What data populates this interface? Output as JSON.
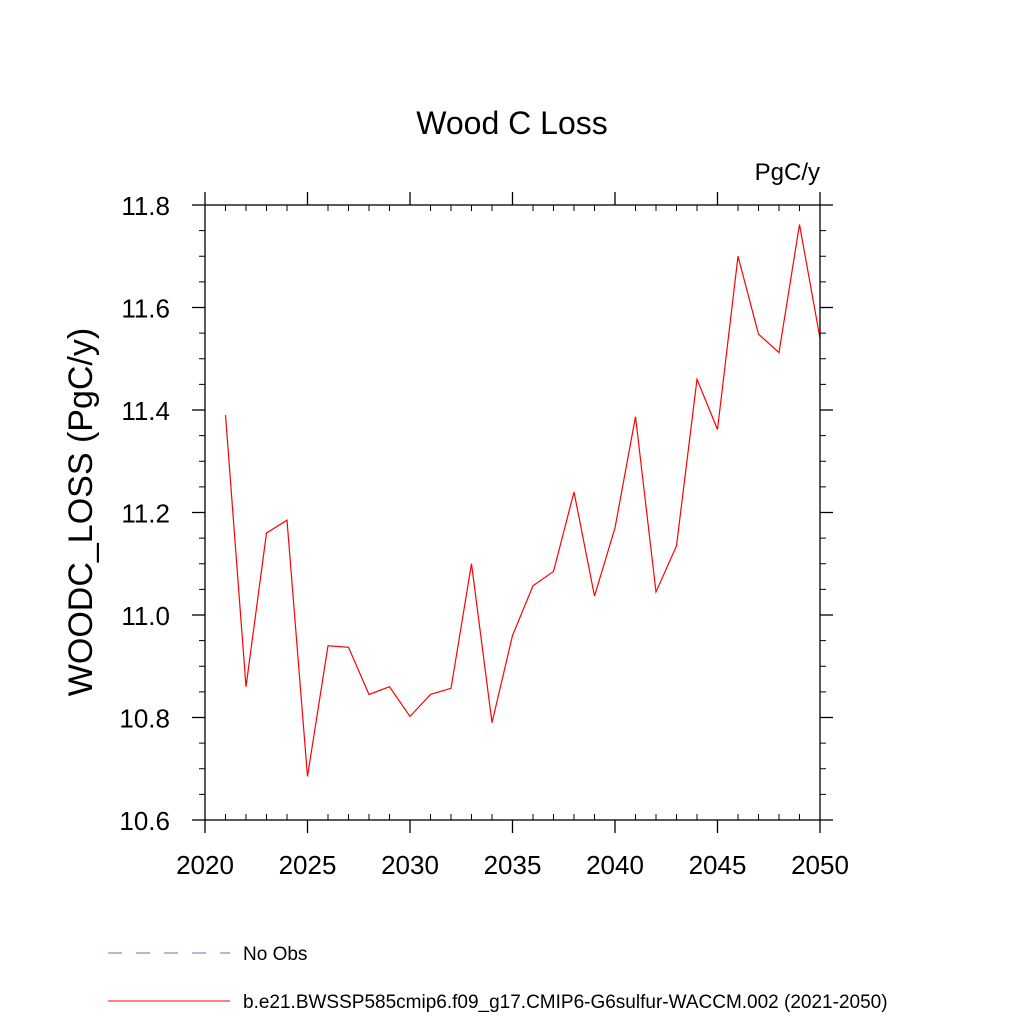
{
  "chart_data": {
    "type": "line",
    "title": "Wood C Loss",
    "units": "PgC/y",
    "xlabel": "",
    "ylabel": "WOODC_LOSS  (PgC/y)",
    "xlim": [
      2020,
      2050
    ],
    "ylim": [
      10.6,
      11.8
    ],
    "xticks": [
      2020,
      2025,
      2030,
      2035,
      2040,
      2045,
      2050
    ],
    "yticks": [
      10.6,
      10.8,
      11.0,
      11.2,
      11.4,
      11.6,
      11.8
    ],
    "ytick_labels": [
      "10.6",
      "10.8",
      "11.0",
      "11.2",
      "11.4",
      "11.6",
      "11.8"
    ],
    "grid": false,
    "legend_position": "bottom",
    "series": [
      {
        "name": "b.e21.BWSSP585cmip6.f09_g17.CMIP6-G6sulfur-WACCM.002 (2021-2050)",
        "color": "#ff0000",
        "style": "solid",
        "x": [
          2021,
          2022,
          2023,
          2024,
          2025,
          2026,
          2027,
          2028,
          2029,
          2030,
          2031,
          2032,
          2033,
          2034,
          2035,
          2036,
          2037,
          2038,
          2039,
          2040,
          2041,
          2042,
          2043,
          2044,
          2045,
          2046,
          2047,
          2048,
          2049,
          2050
        ],
        "values": [
          11.39,
          10.86,
          11.16,
          11.185,
          10.685,
          10.94,
          10.937,
          10.845,
          10.86,
          10.802,
          10.845,
          10.857,
          11.1,
          10.79,
          10.96,
          11.057,
          11.085,
          11.24,
          11.037,
          11.17,
          11.387,
          11.045,
          11.135,
          11.46,
          11.362,
          11.7,
          11.548,
          11.512,
          11.762,
          11.54
        ]
      }
    ],
    "legend": [
      {
        "label": "No Obs",
        "color": "#7b68b0",
        "style": "dashed"
      },
      {
        "label": "b.e21.BWSSP585cmip6.f09_g17.CMIP6-G6sulfur-WACCM.002 (2021-2050)",
        "color": "#ff0000",
        "style": "solid"
      }
    ]
  }
}
